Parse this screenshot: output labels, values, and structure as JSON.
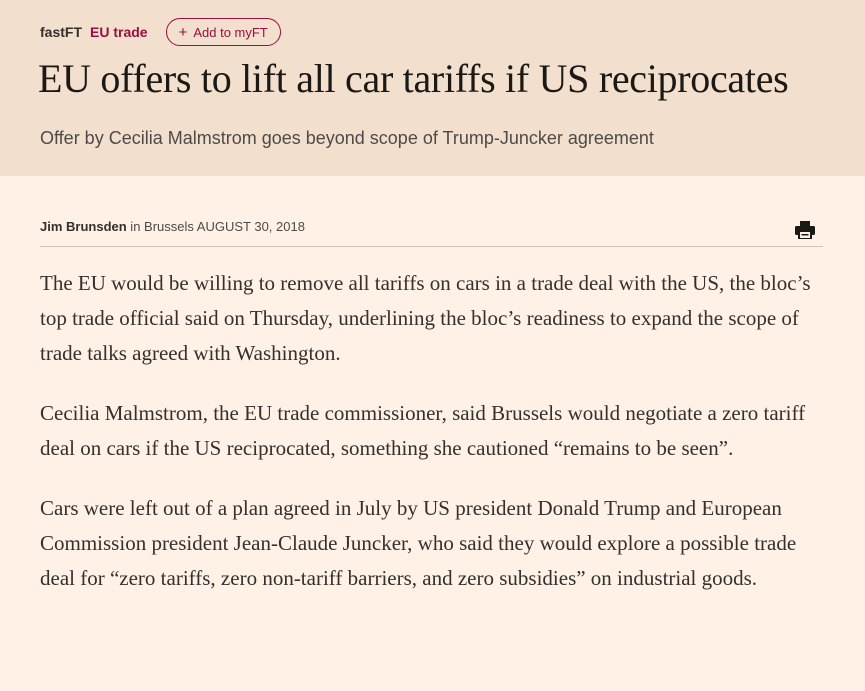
{
  "topline": {
    "brand": "fastFT",
    "section": "EU trade",
    "myft_button": "Add to myFT",
    "myft_icon": "plus-icon"
  },
  "article": {
    "headline": "EU offers to lift all car tariffs if US reciprocates",
    "standfirst": "Offer by Cecilia Malmstrom goes beyond scope of Trump-Juncker agreement",
    "byline": {
      "author": "Jim Brunsden",
      "location_prefix": " in ",
      "location": "Brussels",
      "date": "AUGUST 30, 2018"
    },
    "print_icon": "print-icon",
    "paragraphs": [
      "The EU would be willing to remove all tariffs on cars in a trade deal with the US, the bloc’s top trade official said on Thursday, underlining the bloc’s readiness to expand the scope of trade talks agreed with Washington.",
      "Cecilia Malmstrom, the EU trade commissioner, said Brussels would negotiate a zero tariff deal on cars if the US reciprocated, something she cautioned “remains to be seen”.",
      "Cars were left out of a plan agreed in July by US president Donald Trump and European Commission president Jean-Claude Juncker, who said they would explore a possible trade deal for “zero tariffs, zero non-tariff barriers, and zero subsidies” on industrial goods."
    ]
  },
  "colors": {
    "page_background": "#fff1e5",
    "header_background": "#f2dfce",
    "accent": "#990f3d",
    "text": "#33302e"
  }
}
